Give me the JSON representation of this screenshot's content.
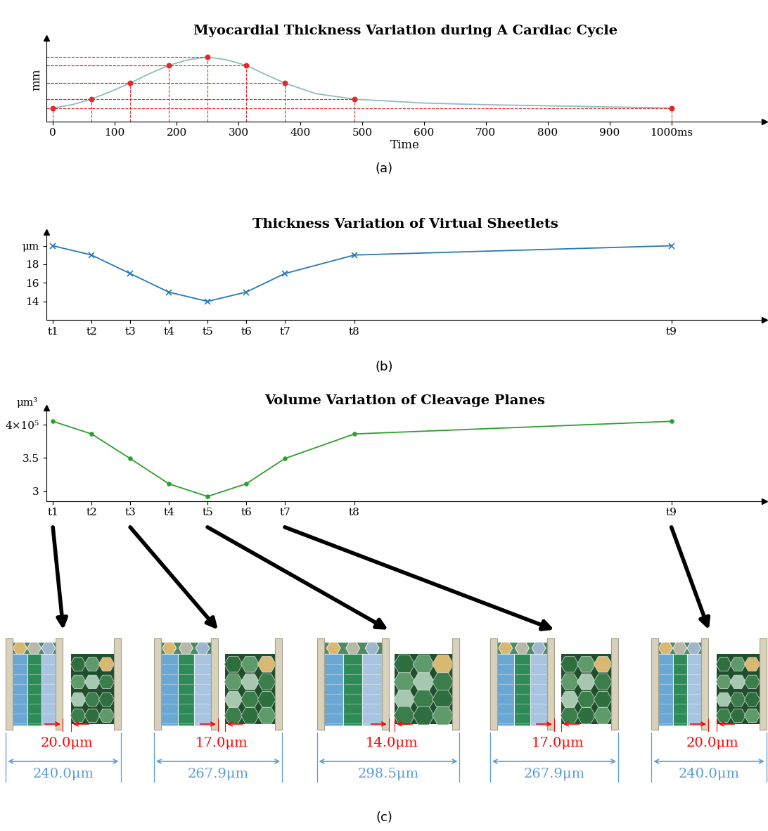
{
  "chart_data": [
    {
      "type": "line",
      "title": "Myocardial Thickness Variation during A Cardiac Cycle",
      "x_label": "Time",
      "y_label": "mm",
      "caption": "(a)",
      "tick_labels": "x",
      "xlim": [
        -11,
        1150
      ],
      "ylim": [
        0,
        15
      ],
      "xticks": [
        0,
        100,
        200,
        300,
        400,
        500,
        600,
        700,
        800,
        900,
        {
          "value": 1000,
          "label": "1000ms"
        }
      ],
      "yticks": [],
      "series": [
        {
          "type": "line",
          "color": "#8fbcbc",
          "x": [
            0,
            31,
            62.5,
            93.75,
            125,
            156,
            187.5,
            218,
            250,
            281,
            312.5,
            343,
            375,
            425,
            487.5,
            600,
            700,
            800,
            900,
            1000
          ],
          "values": [
            2.4,
            3.0,
            4.0,
            5.4,
            6.9,
            8.6,
            10.1,
            11.1,
            11.6,
            11.1,
            10.1,
            8.5,
            6.9,
            5.0,
            4.0,
            3.3,
            3.0,
            2.8,
            2.6,
            2.4
          ]
        },
        {
          "type": "scatter",
          "color": "#e8262a",
          "marker": "o",
          "line_style": "dashed",
          "x": [
            0,
            62.5,
            125,
            187.5,
            250,
            312.5,
            375,
            487.5,
            1000
          ],
          "values": [
            2.4,
            4.0,
            6.9,
            10.1,
            11.6,
            10.1,
            6.9,
            4.0,
            2.4
          ]
        }
      ]
    },
    {
      "type": "line",
      "title": "Thickness Variation of Virtual Sheetlets",
      "caption": "(b)",
      "xlim": [
        -11,
        1150
      ],
      "ylim": [
        12,
        21.5
      ],
      "xticks": [
        {
          "value": 0,
          "label": "t1"
        },
        {
          "value": 62.5,
          "label": "t2"
        },
        {
          "value": 125,
          "label": "t3"
        },
        {
          "value": 187.5,
          "label": "t4"
        },
        {
          "value": 250,
          "label": "t5"
        },
        {
          "value": 312.5,
          "label": "t6"
        },
        {
          "value": 375,
          "label": "t7"
        },
        {
          "value": 487.5,
          "label": "t8"
        },
        {
          "value": 1000,
          "label": "t9"
        }
      ],
      "yticks": [
        14,
        16,
        18,
        {
          "value": 20,
          "label": "μm"
        }
      ],
      "series": [
        {
          "color": "#2878b5",
          "marker": "x",
          "line_style": "solid",
          "x": [
            0,
            62.5,
            125,
            187.5,
            250,
            312.5,
            375,
            487.5,
            1000
          ],
          "values": [
            20,
            19,
            17,
            15,
            14,
            15,
            17,
            19,
            20
          ]
        }
      ]
    },
    {
      "type": "line",
      "title": "Volume Variation of Cleavage Planes",
      "y_label": "μm³",
      "xlim": [
        -11,
        1150
      ],
      "ylim": [
        2.85,
        4.25
      ],
      "xticks": [
        {
          "value": 0,
          "label": "t1"
        },
        {
          "value": 62.5,
          "label": "t2"
        },
        {
          "value": 125,
          "label": "t3"
        },
        {
          "value": 187.5,
          "label": "t4"
        },
        {
          "value": 250,
          "label": "t5"
        },
        {
          "value": 312.5,
          "label": "t6"
        },
        {
          "value": 375,
          "label": "t7"
        },
        {
          "value": 487.5,
          "label": "t8"
        },
        {
          "value": 1000,
          "label": "t9"
        }
      ],
      "yticks": [
        3,
        3.5,
        {
          "value": 4,
          "label": "4×10⁵"
        }
      ],
      "series": [
        {
          "color": "#2ca02c",
          "marker": "o",
          "line_style": "solid",
          "x": [
            0,
            62.5,
            125,
            187.5,
            250,
            312.5,
            375,
            487.5,
            1000
          ],
          "values": [
            4.05,
            3.86,
            3.49,
            3.11,
            2.92,
            3.11,
            3.49,
            3.86,
            4.05
          ]
        }
      ]
    }
  ],
  "diagram": {
    "caption": "(c)",
    "panels": [
      {
        "time": "t1",
        "gap": "20.0μm",
        "width": "240.0μm"
      },
      {
        "time": "t3",
        "gap": "17.0μm",
        "width": "267.9μm"
      },
      {
        "time": "t5",
        "gap": "14.0μm",
        "width": "298.5μm"
      },
      {
        "time": "t7",
        "gap": "17.0μm",
        "width": "267.9μm"
      },
      {
        "time": "t9",
        "gap": "20.0μm",
        "width": "240.0μm"
      }
    ]
  }
}
